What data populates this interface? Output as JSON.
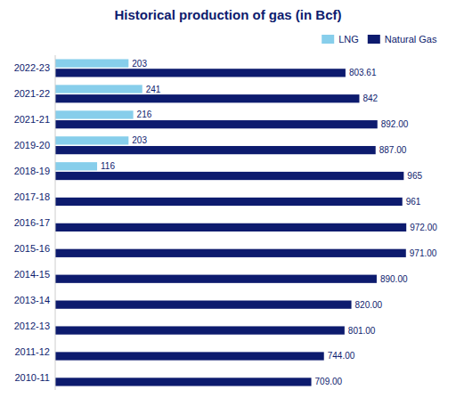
{
  "chart_data": {
    "type": "bar",
    "orientation": "horizontal",
    "title": "Historical production of gas (in Bcf)",
    "categories": [
      "2022-23",
      "2021-22",
      "2021-21",
      "2019-20",
      "2018-19",
      "2017-18",
      "2016-17",
      "2015-16",
      "2014-15",
      "2013-14",
      "2012-13",
      "2011-12",
      "2010-11"
    ],
    "series": [
      {
        "name": "Natural Gas",
        "color": "#0d1b6e",
        "values": [
          803.61,
          842,
          892.0,
          887.0,
          965,
          961,
          972.0,
          971.0,
          890.0,
          820.0,
          801.0,
          744.0,
          709.0
        ],
        "value_labels": [
          "803.61",
          "842",
          "892.00",
          "887.00",
          "965",
          "961",
          "972.00",
          "971.00",
          "890.00",
          "820.00",
          "801.00",
          "744.00",
          "709.00"
        ]
      },
      {
        "name": "LNG",
        "color": "#87ceeb",
        "values": [
          203,
          241,
          216,
          203,
          116,
          0,
          0,
          0,
          0,
          0,
          0,
          0,
          0
        ],
        "value_labels": [
          "203",
          "241",
          "216",
          "203",
          "116",
          null,
          null,
          null,
          null,
          null,
          null,
          null,
          null
        ]
      }
    ],
    "xlim": [
      0,
      1080
    ],
    "data_labels": true,
    "tick_labels": "y",
    "grid": false,
    "legend": "upper right"
  }
}
